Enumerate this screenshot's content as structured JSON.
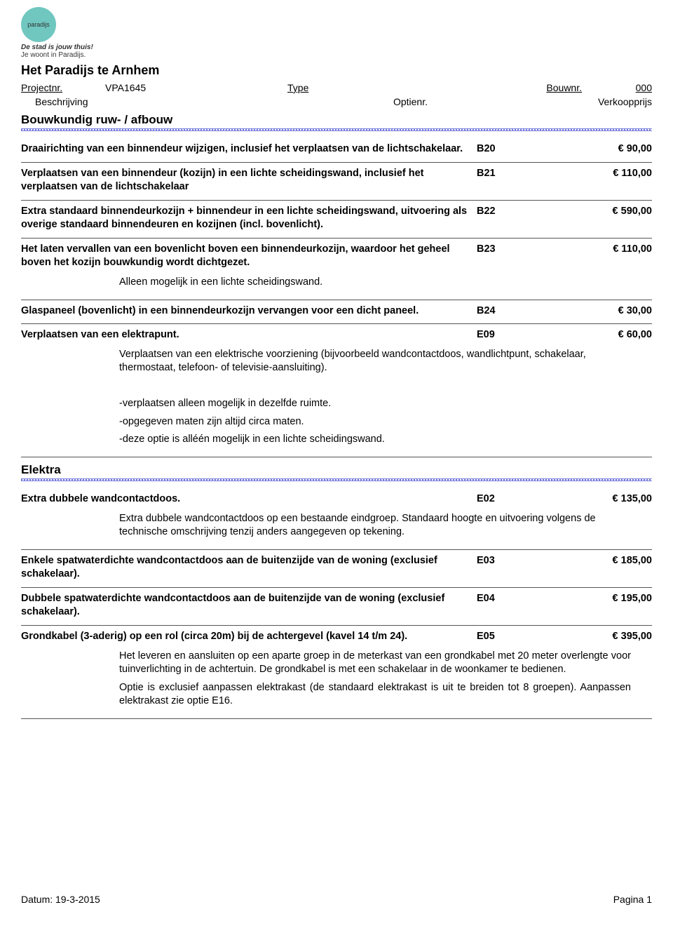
{
  "logo": {
    "text": "paradijs",
    "tagline1": "De stad is jouw thuis!",
    "tagline2": "Je woont in Paradijs.",
    "bg": "#6fc7c0"
  },
  "doc_title": "Het Paradijs te Arnhem",
  "meta": {
    "projectnr_label": "Projectnr.",
    "projectnr": "VPA1645",
    "type_label": "Type",
    "bouwnr_label": "Bouwnr.",
    "bouwnr": "000",
    "beschrijving_label": "Beschrijving",
    "optienr_label": "Optienr.",
    "verkoopprijs_label": "Verkoopprijs"
  },
  "sections": [
    {
      "title": "Bouwkundig ruw- / afbouw",
      "items": [
        {
          "desc": "Draairichting van een binnendeur wijzigen, inclusief het verplaatsen van de lichtschakelaar.",
          "code": "B20",
          "price": "€ 90,00"
        },
        {
          "desc": "Verplaatsen van een binnendeur (kozijn) in een lichte scheidingswand, inclusief het verplaatsen van de lichtschakelaar",
          "code": "B21",
          "price": "€ 110,00"
        },
        {
          "desc": "Extra standaard binnendeurkozijn + binnendeur in een lichte scheidingswand, uitvoering als overige standaard binnendeuren en kozijnen (incl. bovenlicht).",
          "code": "B22",
          "price": "€ 590,00"
        },
        {
          "desc": "Het laten vervallen van een bovenlicht boven een binnendeurkozijn, waardoor het geheel boven het kozijn bouwkundig wordt dichtgezet.",
          "code": "B23",
          "price": "€ 110,00",
          "notes": [
            "Alleen mogelijk in een lichte scheidingswand."
          ]
        },
        {
          "desc": "Glaspaneel (bovenlicht) in een binnendeurkozijn vervangen voor een dicht paneel.",
          "code": "B24",
          "price": "€ 30,00"
        },
        {
          "desc": "Verplaatsen van een elektrapunt.",
          "code": "E09",
          "price": "€ 60,00",
          "notes": [
            "Verplaatsen van een elektrische voorziening (bijvoorbeeld wandcontactdoos, wandlichtpunt, schakelaar, thermostaat, telefoon- of televisie-aansluiting).",
            "",
            "-verplaatsen alleen mogelijk in dezelfde ruimte.",
            "-opgegeven maten zijn altijd circa maten.",
            "-deze optie is alléén mogelijk in een lichte scheidingswand."
          ]
        }
      ]
    },
    {
      "title": "Elektra",
      "items": [
        {
          "desc": "Extra dubbele wandcontactdoos.",
          "code": "E02",
          "price": "€ 135,00",
          "notes": [
            "Extra dubbele wandcontactdoos op een bestaande eindgroep. Standaard hoogte en uitvoering volgens de technische omschrijving tenzij anders aangegeven op tekening."
          ]
        },
        {
          "desc": "Enkele spatwaterdichte wandcontactdoos aan de buitenzijde van de woning (exclusief schakelaar).",
          "code": "E03",
          "price": "€ 185,00"
        },
        {
          "desc": "Dubbele spatwaterdichte wandcontactdoos aan de buitenzijde van de woning (exclusief schakelaar).",
          "code": "E04",
          "price": "€ 195,00"
        },
        {
          "desc": "Grondkabel (3-aderig) op een rol (circa 20m) bij de achtergevel (kavel 14 t/m 24).",
          "code": "E05",
          "price": "€ 395,00",
          "notes_justify": true,
          "notes": [
            "Het leveren en aansluiten op een aparte groep in de meterkast van een grondkabel met 20 meter overlengte voor tuinverlichting in de achtertuin. De grondkabel is met een schakelaar in de woonkamer te bedienen.",
            "Optie is exclusief aanpassen elektrakast (de standaard elektrakast is uit te breiden tot 8 groepen). Aanpassen elektrakast zie optie E16."
          ]
        }
      ]
    }
  ],
  "footer": {
    "date_label": "Datum:",
    "date": "19-3-2015",
    "page_label": "Pagina",
    "page": "1"
  },
  "colors": {
    "divider": "#7a7fdc",
    "rule": "#555555",
    "text": "#000000",
    "bg": "#ffffff"
  }
}
